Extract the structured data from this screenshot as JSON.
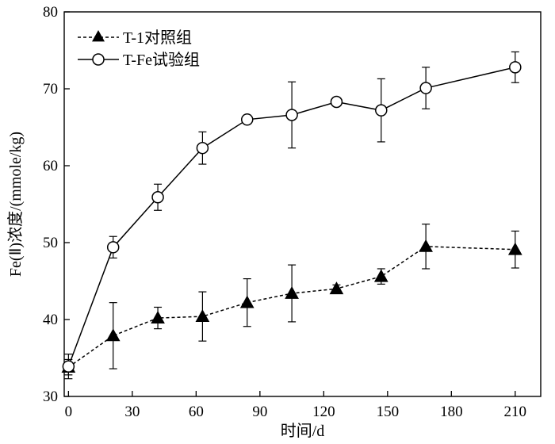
{
  "chart_data": {
    "type": "line",
    "xlabel": "时间/d",
    "ylabel": "Fe(Ⅱ)浓度/(mmole/kg)",
    "xlim": [
      -2,
      222
    ],
    "ylim": [
      30,
      80
    ],
    "xticks": [
      0,
      30,
      60,
      90,
      120,
      150,
      180,
      210
    ],
    "yticks": [
      30,
      40,
      50,
      60,
      70,
      80
    ],
    "grid": false,
    "legend_position": "top-left",
    "series": [
      {
        "name": "T-1对照组",
        "line_style": "dashed",
        "marker": "filled-triangle",
        "color": "#000000",
        "x": [
          0,
          21,
          42,
          63,
          84,
          105,
          126,
          147,
          168,
          210
        ],
        "y": [
          33.8,
          37.9,
          40.2,
          40.4,
          42.2,
          43.4,
          44.0,
          45.6,
          49.5,
          49.1
        ],
        "error": [
          1.0,
          4.3,
          1.4,
          3.2,
          3.1,
          3.7,
          0.5,
          1.0,
          2.9,
          2.4
        ]
      },
      {
        "name": "T-Fe试验组",
        "line_style": "solid",
        "marker": "open-circle",
        "color": "#000000",
        "x": [
          0,
          21,
          42,
          63,
          84,
          105,
          126,
          147,
          168,
          210
        ],
        "y": [
          33.9,
          49.4,
          55.9,
          62.3,
          66.0,
          66.6,
          68.3,
          67.2,
          70.1,
          72.8
        ],
        "error": [
          1.6,
          1.4,
          1.7,
          2.1,
          0.4,
          4.3,
          0.3,
          4.1,
          2.7,
          2.0
        ]
      }
    ]
  }
}
